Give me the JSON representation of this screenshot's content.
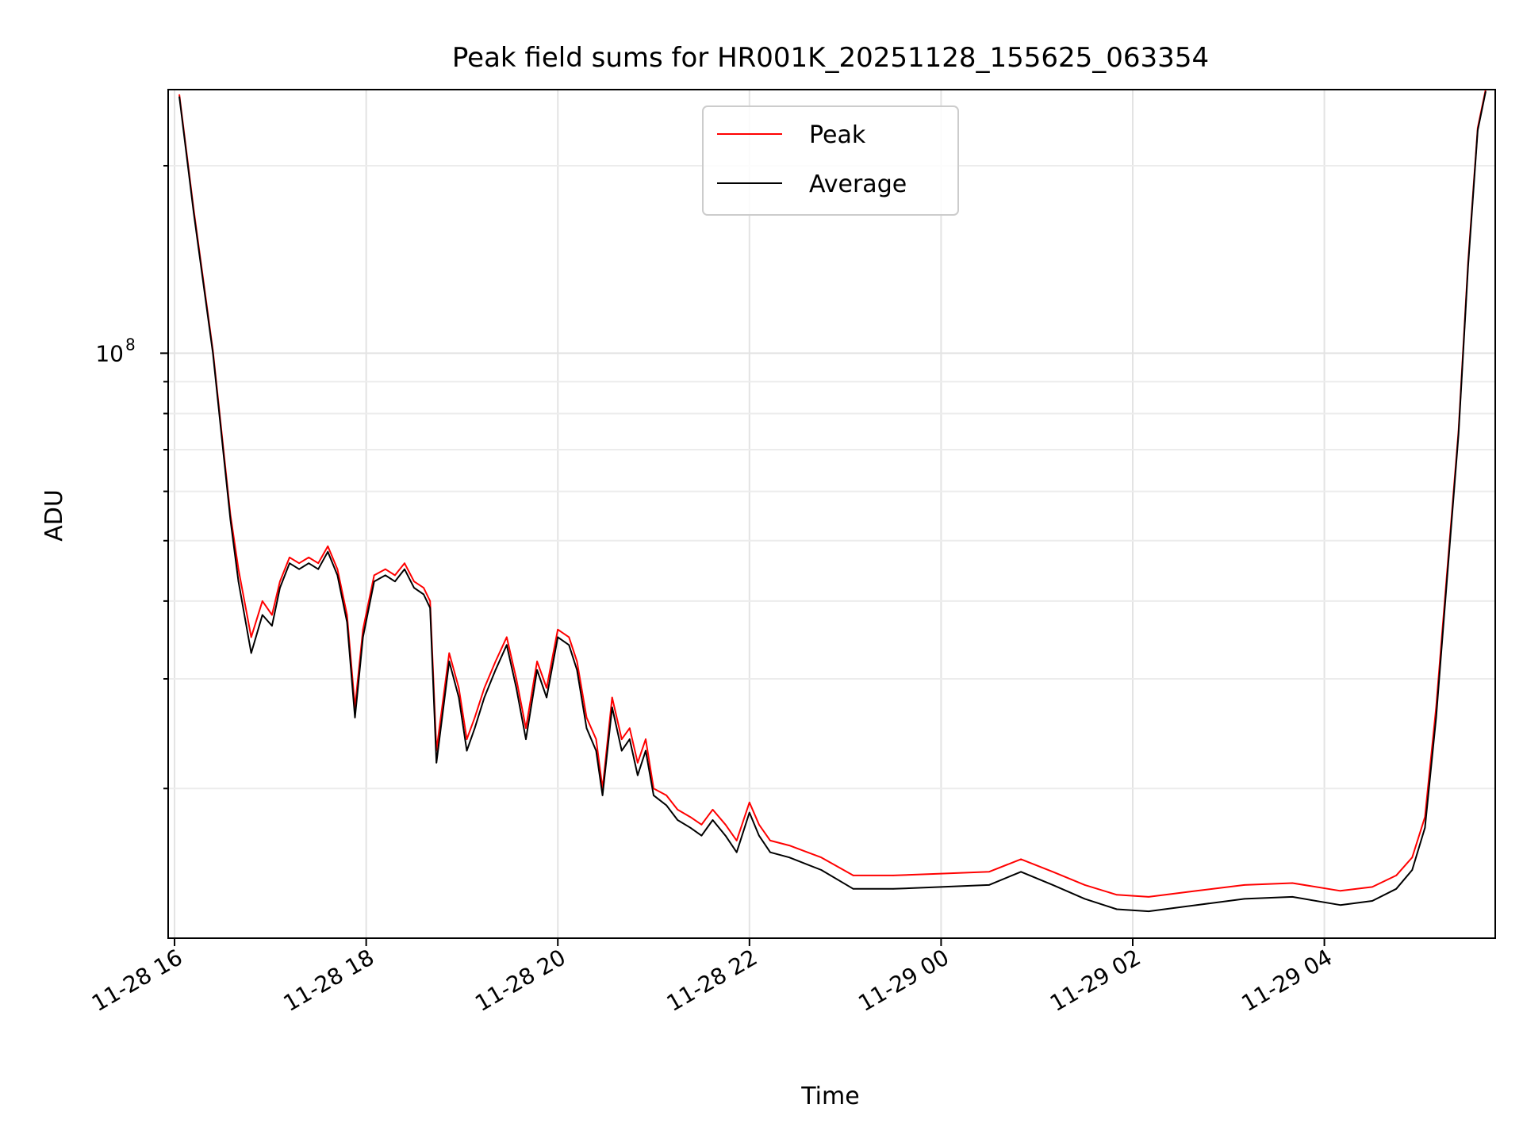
{
  "chart_data": {
    "type": "line",
    "title": "Peak field sums for HR001K_20251128_155625_063354",
    "xlabel": "Time",
    "ylabel": "ADU",
    "yscale": "log",
    "ylim": [
      11500000,
      265000000
    ],
    "xlim": [
      "2025-11-28 15:56",
      "2025-11-29 05:47"
    ],
    "grid": true,
    "legend_position": "upper-center",
    "x_ticks": [
      {
        "value": "2025-11-28 16:00",
        "label": "11-28 16"
      },
      {
        "value": "2025-11-28 18:00",
        "label": "11-28 18"
      },
      {
        "value": "2025-11-28 20:00",
        "label": "11-28 20"
      },
      {
        "value": "2025-11-28 22:00",
        "label": "11-28 22"
      },
      {
        "value": "2025-11-29 00:00",
        "label": "11-29 00"
      },
      {
        "value": "2025-11-29 02:00",
        "label": "11-29 02"
      },
      {
        "value": "2025-11-29 04:00",
        "label": "11-29 04"
      }
    ],
    "y_major_ticks": [
      {
        "value": 100000000,
        "label_base": "10",
        "label_exp": "8"
      }
    ],
    "y_minor_ticks": [
      20000000,
      30000000,
      40000000,
      50000000,
      60000000,
      70000000,
      80000000,
      90000000,
      200000000
    ],
    "x": [
      "2025-11-28 16:03",
      "2025-11-28 16:12",
      "2025-11-28 16:24",
      "2025-11-28 16:35",
      "2025-11-28 16:40",
      "2025-11-28 16:48",
      "2025-11-28 16:55",
      "2025-11-28 17:01",
      "2025-11-28 17:06",
      "2025-11-28 17:12",
      "2025-11-28 17:18",
      "2025-11-28 17:24",
      "2025-11-28 17:30",
      "2025-11-28 17:36",
      "2025-11-28 17:42",
      "2025-11-28 17:48",
      "2025-11-28 17:53",
      "2025-11-28 17:58",
      "2025-11-28 18:05",
      "2025-11-28 18:12",
      "2025-11-28 18:18",
      "2025-11-28 18:24",
      "2025-11-28 18:30",
      "2025-11-28 18:36",
      "2025-11-28 18:40",
      "2025-11-28 18:44",
      "2025-11-28 18:52",
      "2025-11-28 18:58",
      "2025-11-28 19:03",
      "2025-11-28 19:08",
      "2025-11-28 19:14",
      "2025-11-28 19:21",
      "2025-11-28 19:28",
      "2025-11-28 19:34",
      "2025-11-28 19:40",
      "2025-11-28 19:47",
      "2025-11-28 19:53",
      "2025-11-28 20:00",
      "2025-11-28 20:07",
      "2025-11-28 20:12",
      "2025-11-28 20:18",
      "2025-11-28 20:24",
      "2025-11-28 20:28",
      "2025-11-28 20:34",
      "2025-11-28 20:40",
      "2025-11-28 20:45",
      "2025-11-28 20:50",
      "2025-11-28 20:55",
      "2025-11-28 21:00",
      "2025-11-28 21:08",
      "2025-11-28 21:15",
      "2025-11-28 21:23",
      "2025-11-28 21:30",
      "2025-11-28 21:37",
      "2025-11-28 21:45",
      "2025-11-28 21:52",
      "2025-11-28 22:00",
      "2025-11-28 22:06",
      "2025-11-28 22:13",
      "2025-11-28 22:25",
      "2025-11-28 22:45",
      "2025-11-28 23:05",
      "2025-11-28 23:30",
      "2025-11-29 00:00",
      "2025-11-29 00:30",
      "2025-11-29 00:50",
      "2025-11-29 01:10",
      "2025-11-29 01:30",
      "2025-11-29 01:50",
      "2025-11-29 02:10",
      "2025-11-29 02:40",
      "2025-11-29 03:10",
      "2025-11-29 03:40",
      "2025-11-29 04:10",
      "2025-11-29 04:30",
      "2025-11-29 04:45",
      "2025-11-29 04:55",
      "2025-11-29 05:03",
      "2025-11-29 05:10",
      "2025-11-29 05:17",
      "2025-11-29 05:24",
      "2025-11-29 05:30",
      "2025-11-29 05:36",
      "2025-11-29 05:41"
    ],
    "series": [
      {
        "name": "Peak",
        "color": "#ff0000",
        "values": [
          260000000,
          170000000,
          101000000,
          55000000,
          45000000,
          35000000,
          40000000,
          38000000,
          43000000,
          47000000,
          46000000,
          47000000,
          46000000,
          49000000,
          45000000,
          38000000,
          27000000,
          36000000,
          44000000,
          45000000,
          44000000,
          46000000,
          43000000,
          42000000,
          40000000,
          23000000,
          33000000,
          29000000,
          24000000,
          26000000,
          29000000,
          32000000,
          35000000,
          30000000,
          25000000,
          32000000,
          29000000,
          36000000,
          35000000,
          32000000,
          26000000,
          24000000,
          20000000,
          28000000,
          24000000,
          25000000,
          22000000,
          24000000,
          20000000,
          19500000,
          18500000,
          18000000,
          17500000,
          18500000,
          17500000,
          16500000,
          19000000,
          17500000,
          16500000,
          16200000,
          15500000,
          14500000,
          14500000,
          14600000,
          14700000,
          15400000,
          14700000,
          14000000,
          13500000,
          13400000,
          13700000,
          14000000,
          14100000,
          13700000,
          13900000,
          14500000,
          15500000,
          18000000,
          27000000,
          45000000,
          75000000,
          140000000,
          230000000,
          265000000
        ]
      },
      {
        "name": "Average",
        "color": "#000000",
        "values": [
          258000000,
          168000000,
          100000000,
          54000000,
          43000000,
          33000000,
          38000000,
          36500000,
          42000000,
          46000000,
          45000000,
          46000000,
          45000000,
          48000000,
          44000000,
          37000000,
          26000000,
          35000000,
          43000000,
          44000000,
          43000000,
          45000000,
          42000000,
          41000000,
          39000000,
          22000000,
          32000000,
          28000000,
          23000000,
          25000000,
          28000000,
          31000000,
          34000000,
          29000000,
          24000000,
          31000000,
          28000000,
          35000000,
          34000000,
          31000000,
          25000000,
          23000000,
          19500000,
          27000000,
          23000000,
          24000000,
          21000000,
          23000000,
          19500000,
          18800000,
          17800000,
          17300000,
          16800000,
          17800000,
          16800000,
          15800000,
          18300000,
          16800000,
          15800000,
          15500000,
          14800000,
          13800000,
          13800000,
          13900000,
          14000000,
          14700000,
          14000000,
          13300000,
          12800000,
          12700000,
          13000000,
          13300000,
          13400000,
          13000000,
          13200000,
          13800000,
          14800000,
          17300000,
          26000000,
          44000000,
          74000000,
          138000000,
          228000000,
          263000000
        ]
      }
    ]
  }
}
